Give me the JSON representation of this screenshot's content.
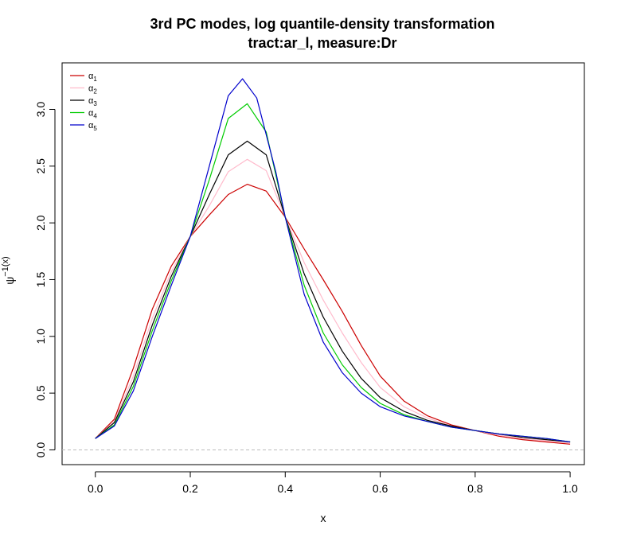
{
  "chart_data": {
    "type": "line",
    "title": "3rd PC modes, log quantile-density transformation",
    "subtitle": "tract:ar_l, measure:Dr",
    "xlabel": "x",
    "ylabel_main": "ψ",
    "ylabel_sup": "−1(x)",
    "xlim": [
      -0.07,
      1.03
    ],
    "ylim": [
      -0.13,
      3.41
    ],
    "xticks": [
      0.0,
      0.2,
      0.4,
      0.6,
      0.8,
      1.0
    ],
    "xtick_labels": [
      "0.0",
      "0.2",
      "0.4",
      "0.6",
      "0.8",
      "1.0"
    ],
    "yticks": [
      0.0,
      0.5,
      1.0,
      1.5,
      2.0,
      2.5,
      3.0
    ],
    "ytick_labels": [
      "0.0",
      "0.5",
      "1.0",
      "1.5",
      "2.0",
      "2.5",
      "3.0"
    ],
    "reference_line": {
      "y": 0,
      "style": "dashed",
      "color": "#bbbbbb"
    },
    "legend_position": "top-left",
    "series": [
      {
        "name": "α",
        "sub": "1",
        "color": "#cc0000",
        "x": [
          0.0,
          0.04,
          0.08,
          0.12,
          0.16,
          0.2,
          0.24,
          0.28,
          0.32,
          0.36,
          0.4,
          0.44,
          0.48,
          0.52,
          0.56,
          0.6,
          0.65,
          0.7,
          0.75,
          0.8,
          0.85,
          0.9,
          0.95,
          1.0
        ],
        "y": [
          0.1,
          0.27,
          0.72,
          1.24,
          1.62,
          1.88,
          2.07,
          2.25,
          2.34,
          2.28,
          2.05,
          1.77,
          1.5,
          1.22,
          0.92,
          0.65,
          0.43,
          0.3,
          0.22,
          0.17,
          0.12,
          0.09,
          0.07,
          0.05
        ]
      },
      {
        "name": "α",
        "sub": "2",
        "color": "#ffbbcc",
        "x": [
          0.0,
          0.04,
          0.08,
          0.12,
          0.16,
          0.2,
          0.24,
          0.28,
          0.32,
          0.36,
          0.4,
          0.44,
          0.48,
          0.52,
          0.56,
          0.6,
          0.65,
          0.7,
          0.75,
          0.8,
          0.85,
          0.9,
          0.95,
          1.0
        ],
        "y": [
          0.1,
          0.25,
          0.65,
          1.16,
          1.57,
          1.88,
          2.15,
          2.45,
          2.56,
          2.46,
          2.05,
          1.65,
          1.32,
          1.03,
          0.77,
          0.55,
          0.38,
          0.28,
          0.21,
          0.17,
          0.13,
          0.1,
          0.08,
          0.06
        ]
      },
      {
        "name": "α",
        "sub": "3",
        "color": "#000000",
        "x": [
          0.0,
          0.04,
          0.08,
          0.12,
          0.16,
          0.2,
          0.24,
          0.28,
          0.32,
          0.36,
          0.4,
          0.44,
          0.48,
          0.52,
          0.56,
          0.6,
          0.65,
          0.7,
          0.75,
          0.8,
          0.85,
          0.9,
          0.95,
          1.0
        ],
        "y": [
          0.1,
          0.24,
          0.6,
          1.1,
          1.53,
          1.88,
          2.25,
          2.6,
          2.72,
          2.6,
          2.05,
          1.55,
          1.17,
          0.87,
          0.63,
          0.46,
          0.34,
          0.26,
          0.21,
          0.17,
          0.14,
          0.11,
          0.09,
          0.07
        ]
      },
      {
        "name": "α",
        "sub": "4",
        "color": "#00cc00",
        "x": [
          0.0,
          0.04,
          0.08,
          0.12,
          0.16,
          0.2,
          0.24,
          0.28,
          0.32,
          0.36,
          0.4,
          0.44,
          0.48,
          0.52,
          0.56,
          0.6,
          0.65,
          0.7,
          0.75,
          0.8,
          0.85,
          0.9,
          0.95,
          1.0
        ],
        "y": [
          0.1,
          0.22,
          0.56,
          1.05,
          1.49,
          1.88,
          2.38,
          2.92,
          3.05,
          2.8,
          2.05,
          1.45,
          1.03,
          0.75,
          0.55,
          0.41,
          0.31,
          0.25,
          0.2,
          0.17,
          0.14,
          0.12,
          0.1,
          0.07
        ]
      },
      {
        "name": "α",
        "sub": "5",
        "color": "#0000cc",
        "x": [
          0.0,
          0.04,
          0.08,
          0.12,
          0.16,
          0.2,
          0.24,
          0.28,
          0.31,
          0.34,
          0.38,
          0.4,
          0.44,
          0.48,
          0.52,
          0.56,
          0.6,
          0.65,
          0.7,
          0.75,
          0.8,
          0.85,
          0.9,
          0.95,
          1.0
        ],
        "y": [
          0.1,
          0.21,
          0.52,
          1.0,
          1.45,
          1.88,
          2.5,
          3.12,
          3.27,
          3.1,
          2.45,
          2.05,
          1.37,
          0.95,
          0.68,
          0.5,
          0.38,
          0.3,
          0.25,
          0.2,
          0.17,
          0.14,
          0.12,
          0.1,
          0.07
        ]
      }
    ]
  }
}
